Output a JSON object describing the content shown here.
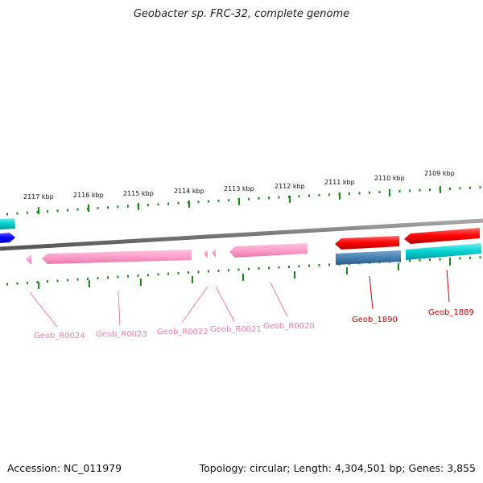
{
  "title": "Geobacter sp. FRC-32, complete genome",
  "footer": {
    "accession": "Accession: NC_011979",
    "summary": "Topology: circular; Length: 4,304,501 bp; Genes: 3,855"
  },
  "ticks_top": [
    "2117 kbp",
    "2116 kbp",
    "2115 kbp",
    "2114 kbp",
    "2113 kbp",
    "2112 kbp",
    "2111 kbp",
    "2110 kbp",
    "2109 kbp"
  ],
  "genes": {
    "geob_r0024": "Geob_R0024",
    "geob_r0023": "Geob_R0023",
    "geob_r0022": "Geob_R0022",
    "geob_r0021": "Geob_R0021",
    "geob_r0020": "Geob_R0020",
    "geob_1890": "Geob_1890",
    "geob_1889": "Geob_1889"
  },
  "colors": {
    "rna_gene": "#ff9ecb",
    "rna_label": "#f07ab0",
    "cds_forward": "#ff0000",
    "cds_label": "#cc0000",
    "steel": "#4682b4",
    "cyan": "#00d1d1",
    "blue": "#0000ff",
    "tick": "#1a8a1a",
    "backbone": "#777777"
  }
}
